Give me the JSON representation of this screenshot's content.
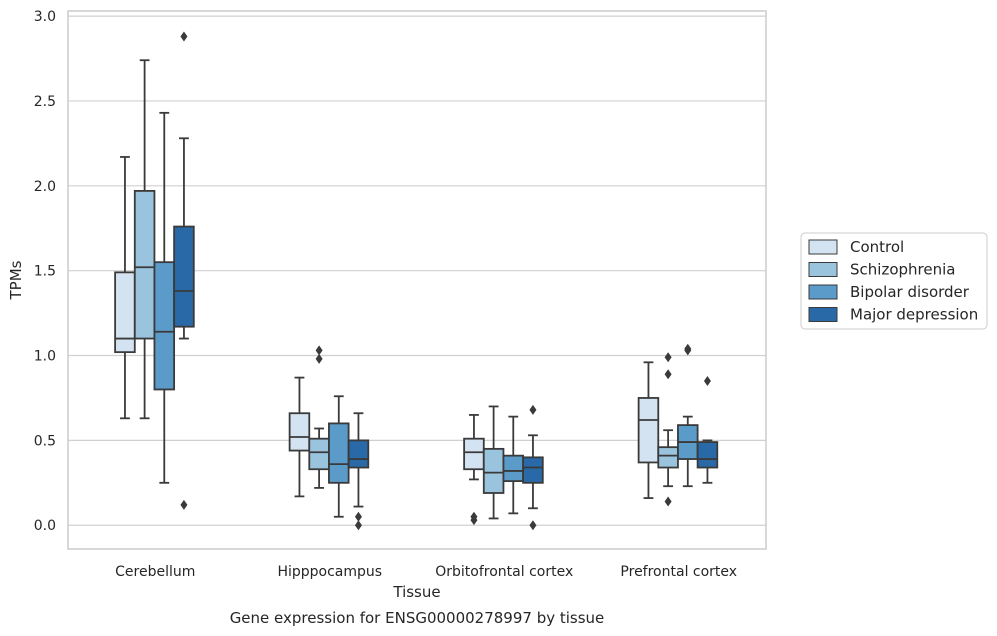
{
  "chart_data": {
    "type": "box",
    "xlabel": "Tissue",
    "ylabel": "TPMs",
    "caption": "Gene expression for ENSG00000278997 by tissue",
    "ylim": [
      -0.14,
      3.03
    ],
    "yticks": [
      0.0,
      0.5,
      1.0,
      1.5,
      2.0,
      2.5,
      3.0
    ],
    "ytick_labels": [
      "0.0",
      "0.5",
      "1.0",
      "1.5",
      "2.0",
      "2.5",
      "3.0"
    ],
    "grid": "horizontal",
    "legend_position": "right",
    "categories": [
      "Cerebellum",
      "Hipppocampus",
      "Orbitofrontal cortex",
      "Prefrontal cortex"
    ],
    "series": [
      {
        "name": "Control",
        "color": "#d4e3f1",
        "boxes": [
          {
            "whislo": 0.63,
            "q1": 1.02,
            "med": 1.1,
            "q3": 1.49,
            "whishi": 2.17,
            "fliers": []
          },
          {
            "whislo": 0.17,
            "q1": 0.44,
            "med": 0.52,
            "q3": 0.66,
            "whishi": 0.87,
            "fliers": []
          },
          {
            "whislo": 0.27,
            "q1": 0.33,
            "med": 0.43,
            "q3": 0.51,
            "whishi": 0.65,
            "fliers": [
              0.05,
              0.03
            ]
          },
          {
            "whislo": 0.16,
            "q1": 0.37,
            "med": 0.62,
            "q3": 0.75,
            "whishi": 0.96,
            "fliers": []
          }
        ]
      },
      {
        "name": "Schizophrenia",
        "color": "#9ac3dd",
        "boxes": [
          {
            "whislo": 0.63,
            "q1": 1.1,
            "med": 1.52,
            "q3": 1.97,
            "whishi": 2.74,
            "fliers": []
          },
          {
            "whislo": 0.22,
            "q1": 0.33,
            "med": 0.43,
            "q3": 0.51,
            "whishi": 0.57,
            "fliers": [
              1.03,
              0.98
            ]
          },
          {
            "whislo": 0.04,
            "q1": 0.19,
            "med": 0.31,
            "q3": 0.45,
            "whishi": 0.7,
            "fliers": []
          },
          {
            "whislo": 0.23,
            "q1": 0.34,
            "med": 0.41,
            "q3": 0.46,
            "whishi": 0.56,
            "fliers": [
              0.99,
              0.89,
              0.14
            ]
          }
        ]
      },
      {
        "name": "Bipolar disorder",
        "color": "#5a9bc9",
        "boxes": [
          {
            "whislo": 0.25,
            "q1": 0.8,
            "med": 1.14,
            "q3": 1.55,
            "whishi": 2.43,
            "fliers": []
          },
          {
            "whislo": 0.05,
            "q1": 0.25,
            "med": 0.36,
            "q3": 0.6,
            "whishi": 0.76,
            "fliers": []
          },
          {
            "whislo": 0.07,
            "q1": 0.26,
            "med": 0.32,
            "q3": 0.41,
            "whishi": 0.64,
            "fliers": []
          },
          {
            "whislo": 0.23,
            "q1": 0.39,
            "med": 0.49,
            "q3": 0.59,
            "whishi": 0.64,
            "fliers": [
              1.04,
              1.03
            ]
          }
        ]
      },
      {
        "name": "Major depression",
        "color": "#2a69a8",
        "boxes": [
          {
            "whislo": 1.1,
            "q1": 1.17,
            "med": 1.38,
            "q3": 1.76,
            "whishi": 2.28,
            "fliers": [
              2.88,
              0.12
            ]
          },
          {
            "whislo": 0.11,
            "q1": 0.34,
            "med": 0.39,
            "q3": 0.5,
            "whishi": 0.66,
            "fliers": [
              0.05,
              0.0
            ]
          },
          {
            "whislo": 0.1,
            "q1": 0.25,
            "med": 0.34,
            "q3": 0.4,
            "whishi": 0.53,
            "fliers": [
              0.68,
              0.0
            ]
          },
          {
            "whislo": 0.25,
            "q1": 0.34,
            "med": 0.39,
            "q3": 0.49,
            "whishi": 0.5,
            "fliers": [
              0.85
            ]
          }
        ]
      }
    ],
    "style": {
      "line_color": "#3a3a3a",
      "grid_color": "#d0d0d0",
      "frame_color": "#cccccc",
      "background": "#ffffff"
    }
  }
}
